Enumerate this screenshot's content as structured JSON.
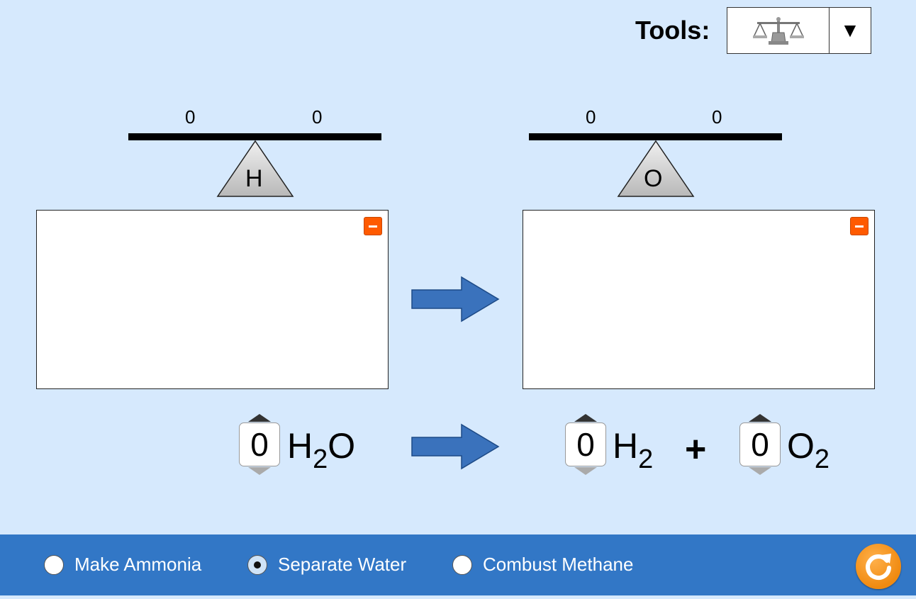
{
  "tools": {
    "label": "Tools:",
    "selected_icon": "balance-scale-icon",
    "dropdown_icon": "triangle-down-icon"
  },
  "scales": [
    {
      "left_value": "0",
      "right_value": "0",
      "element": "H"
    },
    {
      "left_value": "0",
      "right_value": "0",
      "element": "O"
    }
  ],
  "equation": {
    "reactant": {
      "coefficient": "0",
      "symbol": "H",
      "subscript": "2",
      "suffix": "O"
    },
    "products": [
      {
        "coefficient": "0",
        "symbol": "H",
        "subscript": "2"
      },
      {
        "coefficient": "0",
        "symbol": "O",
        "subscript": "2"
      }
    ],
    "plus": "+"
  },
  "modes": [
    {
      "label": "Make Ammonia",
      "selected": false
    },
    {
      "label": "Separate Water",
      "selected": true
    },
    {
      "label": "Combust Methane",
      "selected": false
    }
  ],
  "colors": {
    "background": "#d6e9fd",
    "bar": "#3277c6",
    "arrow": "#3a72bc",
    "minus": "#ff5a00",
    "reset": "#f08a10"
  }
}
